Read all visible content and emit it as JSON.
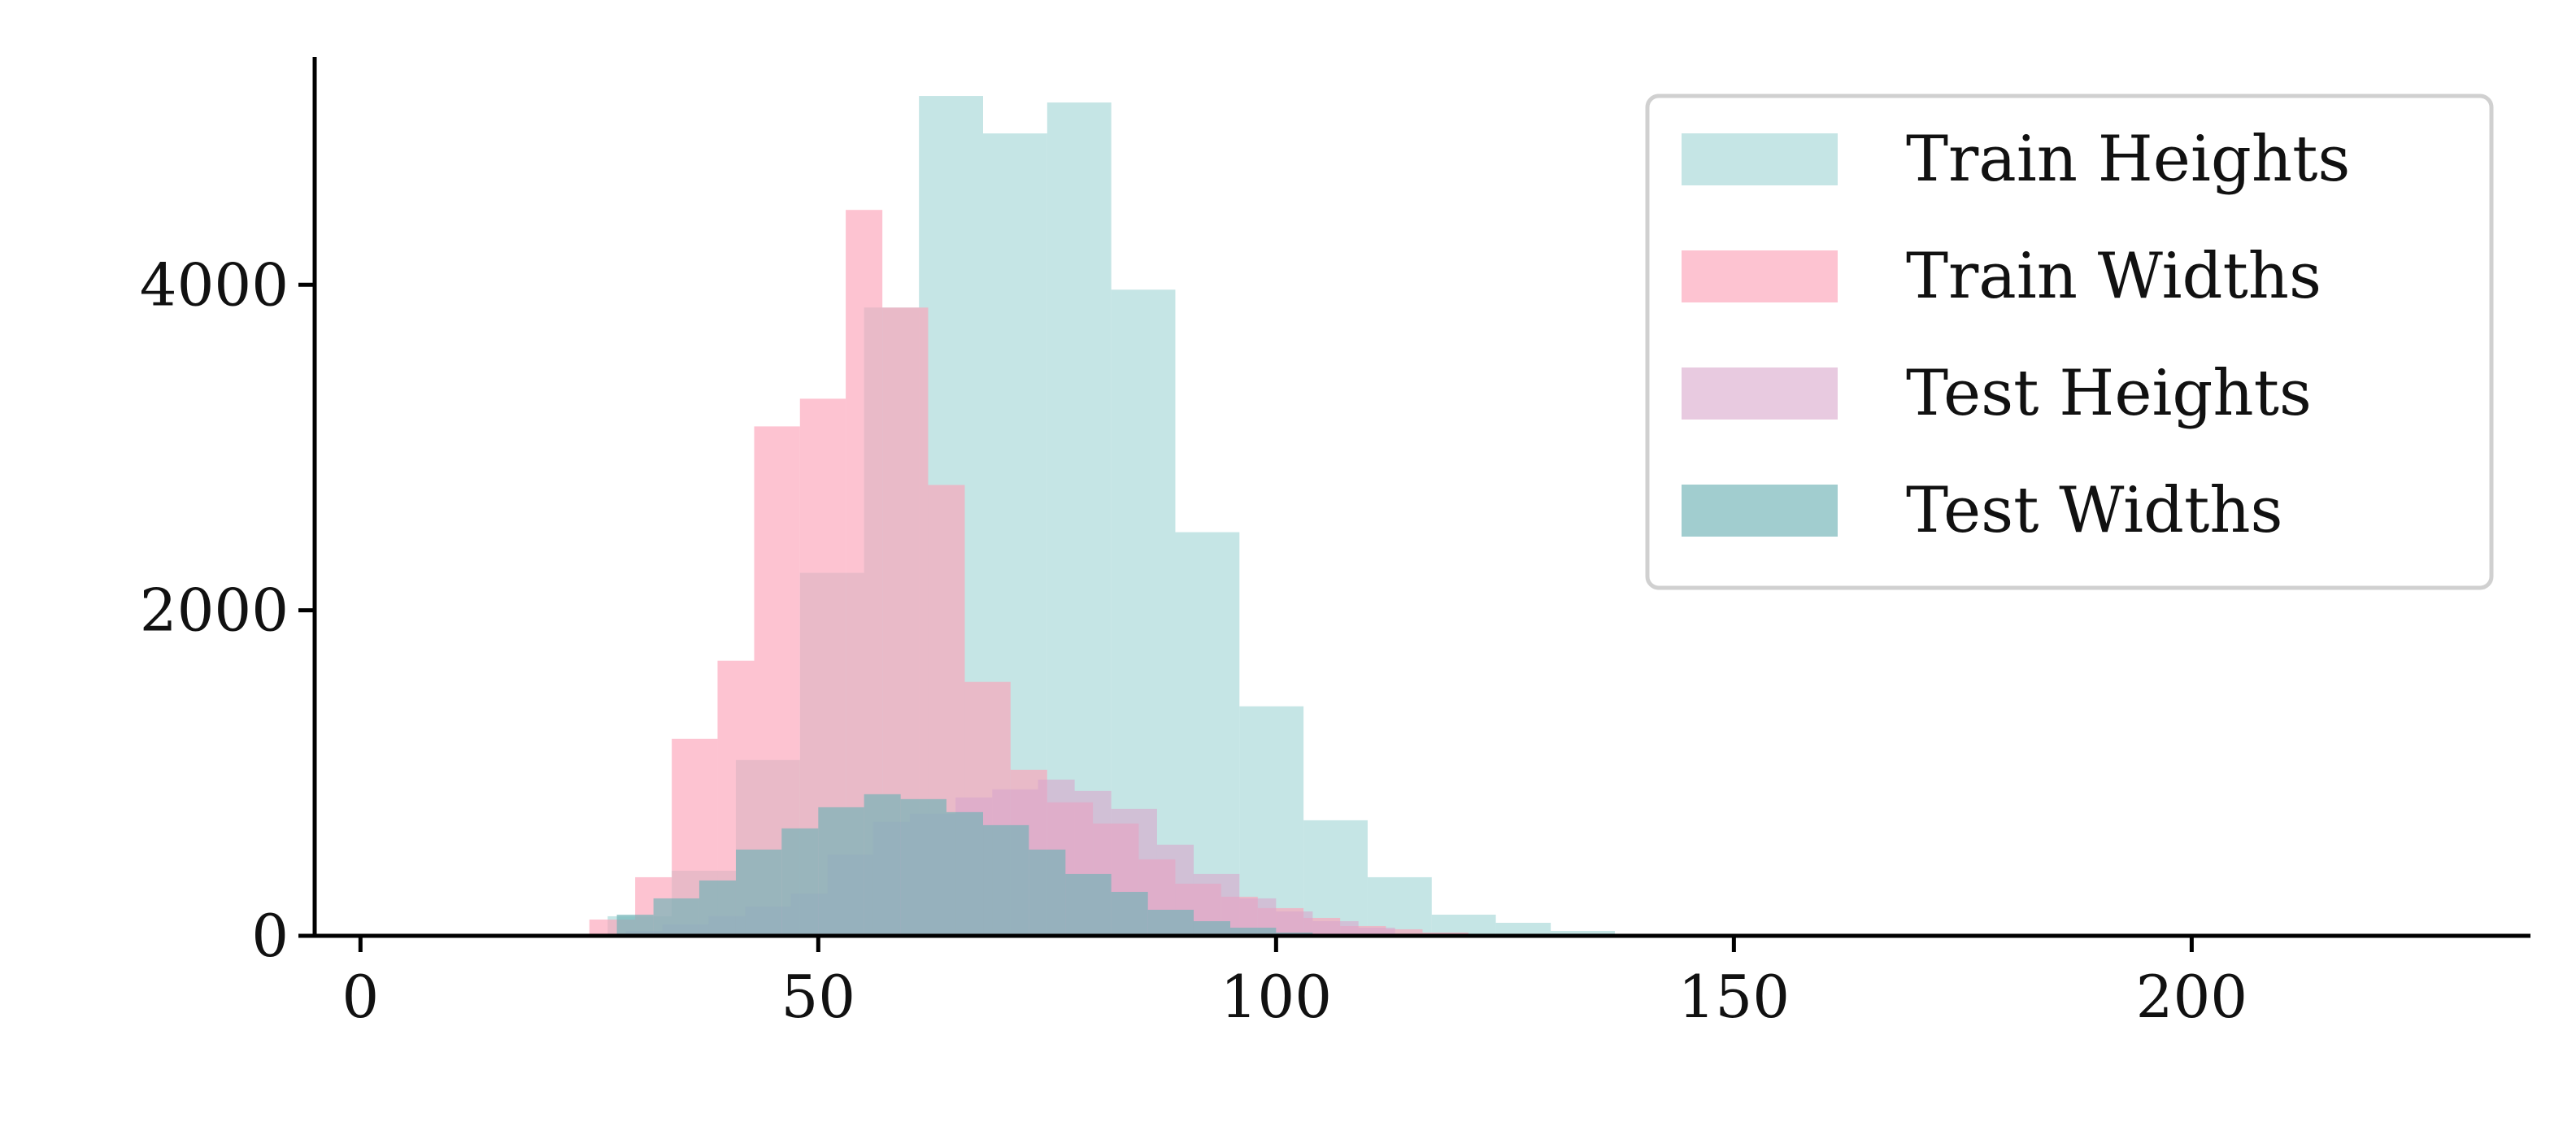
{
  "chart_data": {
    "type": "histogram",
    "title": "",
    "xlabel": "",
    "ylabel": "",
    "xlim": [
      -5,
      237
    ],
    "ylim": [
      0,
      5400
    ],
    "xticks": [
      0,
      50,
      100,
      150,
      200
    ],
    "yticks": [
      0,
      2000,
      4000
    ],
    "legend_position": "top-right",
    "series": [
      {
        "name": "Train Heights",
        "color": "#9fd4d4",
        "opacity": 0.6,
        "bin_edges": [
          27,
          34,
          41,
          48,
          55,
          61,
          68,
          75,
          82,
          89,
          96,
          103,
          110,
          117,
          124,
          130,
          137
        ],
        "counts": [
          120,
          400,
          1080,
          2230,
          3860,
          5160,
          4930,
          5120,
          3970,
          2480,
          1410,
          710,
          360,
          130,
          80,
          30
        ]
      },
      {
        "name": "Train Widths",
        "color": "#fca3b8",
        "opacity": 0.65,
        "bin_edges": [
          25,
          30,
          34,
          39,
          43,
          48,
          53,
          57,
          62,
          66,
          71,
          75,
          80,
          85,
          89,
          94,
          98,
          103,
          107,
          112,
          116,
          121
        ],
        "counts": [
          100,
          360,
          1210,
          1690,
          3130,
          3300,
          4460,
          3860,
          2770,
          1560,
          1020,
          820,
          690,
          470,
          320,
          240,
          170,
          110,
          60,
          40,
          20
        ]
      },
      {
        "name": "Test Heights",
        "color": "#d9a6cc",
        "opacity": 0.6,
        "bin_edges": [
          29,
          33,
          38,
          42,
          47,
          51,
          56,
          60,
          65,
          69,
          74,
          78,
          82,
          87,
          91,
          96,
          100,
          104,
          109,
          113
        ],
        "counts": [
          30,
          70,
          120,
          180,
          260,
          500,
          700,
          750,
          850,
          900,
          960,
          890,
          780,
          560,
          380,
          230,
          150,
          90,
          50
        ]
      },
      {
        "name": "Test Widths",
        "color": "#6fb2b5",
        "opacity": 0.65,
        "bin_edges": [
          28,
          32,
          37,
          41,
          46,
          50,
          55,
          59,
          64,
          68,
          73,
          77,
          82,
          86,
          91,
          95,
          100,
          104
        ],
        "counts": [
          130,
          230,
          340,
          530,
          660,
          790,
          870,
          840,
          760,
          680,
          530,
          380,
          270,
          160,
          90,
          50,
          20
        ]
      }
    ]
  }
}
